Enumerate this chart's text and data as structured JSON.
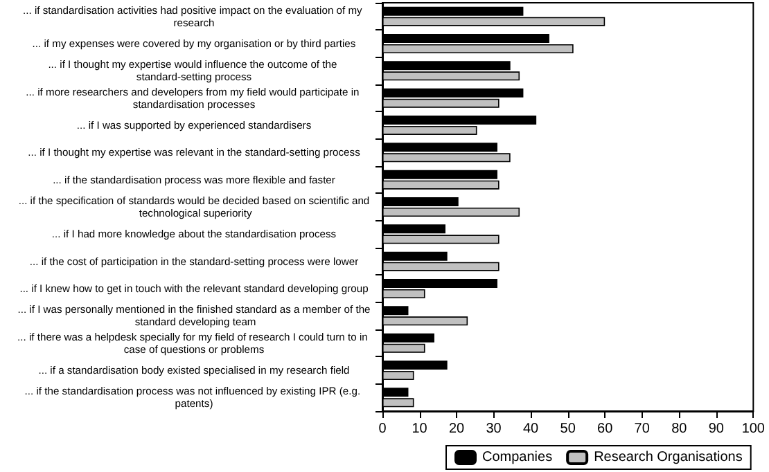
{
  "chart_data": {
    "type": "bar",
    "orientation": "horizontal",
    "categories": [
      "... if standardisation activities had positive impact on the evaluation of my research",
      "... if my expenses were covered by my organisation or by third parties",
      "... if I thought my expertise would influence the outcome of the standard-setting process",
      "... if more researchers and developers from my field would participate in standardisation processes",
      "... if I was supported by experienced standardisers",
      "... if I thought my expertise was relevant in the standard-setting process",
      "... if the standardisation process was more flexible and faster",
      "... if the specification of standards would be decided based on scientific and technological superiority",
      "... if I had more knowledge about the standardisation process",
      "... if the cost of participation in the standard-setting process were lower",
      "... if I knew how to get in touch with the relevant standard developing group",
      "... if I was personally mentioned in the finished standard as a member of the standard developing team",
      "... if there was a helpdesk specially for my field of research I could turn to in case of questions or problems",
      "... if a standardisation body existed specialised in my research field",
      "... if the standardisation process was not influenced by existing IPR (e.g. patents)"
    ],
    "series": [
      {
        "name": "Companies",
        "color": "#000000",
        "values": [
          38,
          45,
          34.5,
          38,
          41.5,
          31,
          31,
          20.5,
          17,
          17.5,
          31,
          7,
          14,
          17.5,
          7
        ]
      },
      {
        "name": "Research Organisations",
        "color": "#c0c0c0",
        "values": [
          60,
          51.5,
          37,
          31.5,
          25.5,
          34.5,
          31.5,
          37,
          31.5,
          31.5,
          11.5,
          23,
          11.5,
          8.5,
          8.5
        ]
      }
    ],
    "xlim": [
      0,
      100
    ],
    "xticks": [
      0,
      10,
      20,
      30,
      40,
      50,
      60,
      70,
      80,
      90,
      100
    ],
    "grid": false,
    "legend": "bottom"
  }
}
